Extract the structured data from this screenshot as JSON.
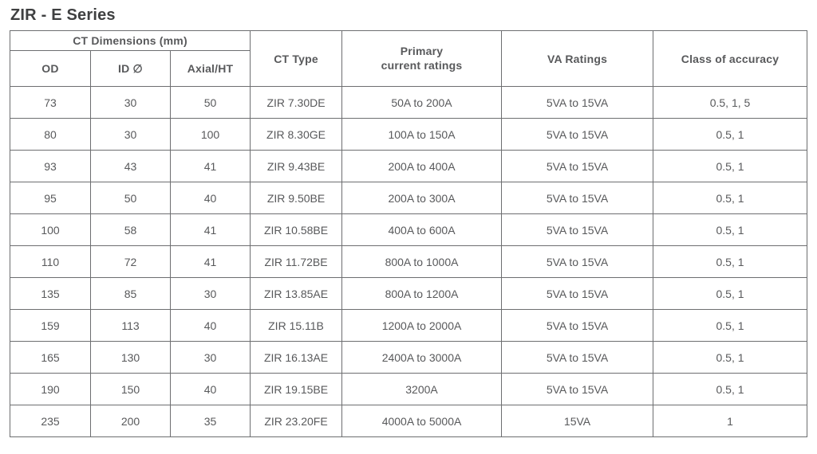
{
  "page": {
    "title": "ZIR - E Series"
  },
  "table": {
    "header": {
      "ct_dimensions_group": "CT Dimensions (mm)",
      "od": "OD",
      "id_diameter": "ID ∅",
      "axial_ht": "Axial/HT",
      "ct_type": "CT Type",
      "primary_current_ratings": "Primary\ncurrent ratings",
      "va_ratings": "VA Ratings",
      "class_of_accuracy": "Class of accuracy"
    },
    "rows": [
      [
        "73",
        "30",
        "50",
        "ZIR 7.30DE",
        "50A to 200A",
        "5VA to 15VA",
        "0.5, 1, 5"
      ],
      [
        "80",
        "30",
        "100",
        "ZIR 8.30GE",
        "100A to 150A",
        "5VA to 15VA",
        "0.5, 1"
      ],
      [
        "93",
        "43",
        "41",
        "ZIR 9.43BE",
        "200A to 400A",
        "5VA to 15VA",
        "0.5, 1"
      ],
      [
        "95",
        "50",
        "40",
        "ZIR 9.50BE",
        "200A to 300A",
        "5VA to 15VA",
        "0.5, 1"
      ],
      [
        "100",
        "58",
        "41",
        "ZIR 10.58BE",
        "400A to 600A",
        "5VA to 15VA",
        "0.5, 1"
      ],
      [
        "110",
        "72",
        "41",
        "ZIR 11.72BE",
        "800A to 1000A",
        "5VA to 15VA",
        "0.5, 1"
      ],
      [
        "135",
        "85",
        "30",
        "ZIR 13.85AE",
        "800A to 1200A",
        "5VA to 15VA",
        "0.5, 1"
      ],
      [
        "159",
        "113",
        "40",
        "ZIR 15.11B",
        "1200A to 2000A",
        "5VA to 15VA",
        "0.5, 1"
      ],
      [
        "165",
        "130",
        "30",
        "ZIR 16.13AE",
        "2400A to 3000A",
        "5VA to 15VA",
        "0.5, 1"
      ],
      [
        "190",
        "150",
        "40",
        "ZIR 19.15BE",
        "3200A",
        "5VA to 15VA",
        "0.5, 1"
      ],
      [
        "235",
        "200",
        "35",
        "ZIR 23.20FE",
        "4000A to 5000A",
        "15VA",
        "1"
      ]
    ]
  },
  "colors": {
    "border": "#6d6e70",
    "text": "#58595b",
    "title": "#3f4041"
  }
}
